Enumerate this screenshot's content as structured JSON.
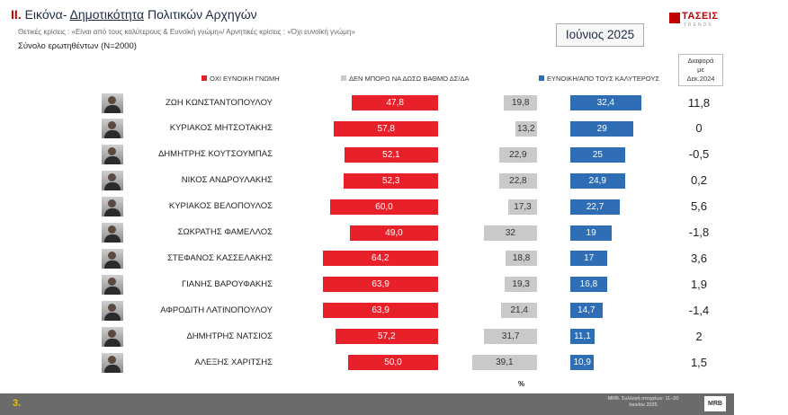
{
  "header": {
    "title_num": "II.",
    "title_pre": "Εικόνα-",
    "title_ul": "Δημοτικότητα",
    "title_post": "Πολιτικών Αρχηγών",
    "subtitle1": "Θετικές κρίσεις : «Είναι από τους καλύτερους & Ευνοϊκή γνώμη»/ Αρνητικές κρίσεις : «Όχι ευνοϊκή γνώμη»",
    "subtitle2": "Σύνολο ερωτηθέντων (Ν=2000)",
    "date": "Ιούνιος 2025",
    "logo_name": "ΤΑΣΕΙΣ",
    "logo_tag": "TRENDS"
  },
  "diff_header": [
    "Διαφορά",
    "με",
    "Δεκ.2024"
  ],
  "legend": {
    "neg": "ΟΧΙ ΕΥΝΟΙΚΗ ΓΝΩΜΗ",
    "neu": "ΔΕΝ ΜΠΟΡΩ ΝΑ ΔΩΣΩ ΒΑΘΜΟ ΔΣ/ΔΑ",
    "pos": "ΕΥΝΟΙΚΗ/ΑΠΟ ΤΟΥΣ ΚΑΛΥΤΕΡΟΥΣ"
  },
  "colors": {
    "neg": "#e8202a",
    "neu": "#c9c9c9",
    "pos": "#2f6eb5"
  },
  "chart_data": {
    "type": "bar",
    "categories": [
      "ΖΩΗ ΚΩΝΣΤΑΝΤΟΠΟΥΛΟΥ",
      "ΚΥΡΙΑΚΟΣ ΜΗΤΣΟΤΑΚΗΣ",
      "ΔΗΜΗΤΡΗΣ ΚΟΥΤΣΟΥΜΠΑΣ",
      "ΝΙΚΟΣ ΑΝΔΡΟΥΛΑΚΗΣ",
      "ΚΥΡΙΑΚΟΣ ΒΕΛΟΠΟΥΛΟΣ",
      "ΣΩΚΡΑΤΗΣ ΦΑΜΕΛΛΟΣ",
      "ΣΤΕΦΑΝΟΣ ΚΑΣΣΕΛΑΚΗΣ",
      "ΓΙΑΝΗΣ ΒΑΡΟΥΦΑΚΗΣ",
      "ΑΦΡΟΔΙΤΗ ΛΑΤΙΝΟΠΟΥΛΟΥ",
      "ΔΗΜΗΤΡΗΣ ΝΑΤΣΙΟΣ",
      "ΑΛΕΞΗΣ ΧΑΡΙΤΣΗΣ"
    ],
    "series": [
      {
        "name": "ΟΧΙ ΕΥΝΟΙΚΗ ΓΝΩΜΗ",
        "key": "neg",
        "values": [
          47.8,
          57.8,
          52.1,
          52.3,
          60.0,
          49.0,
          64.2,
          63.9,
          63.9,
          57.2,
          50.0
        ],
        "labels": [
          "47,8",
          "57,8",
          "52,1",
          "52,3",
          "60,0",
          "49,0",
          "64,2",
          "63,9",
          "63,9",
          "57,2",
          "50,0"
        ]
      },
      {
        "name": "ΔΕΝ ΜΠΟΡΩ ΝΑ ΔΩΣΩ ΒΑΘΜΟ ΔΣ/ΔΑ",
        "key": "neu",
        "values": [
          19.8,
          13.2,
          22.9,
          22.8,
          17.3,
          32,
          18.8,
          19.3,
          21.4,
          31.7,
          39.1
        ],
        "labels": [
          "19,8",
          "13,2",
          "22,9",
          "22,8",
          "17,3",
          "32",
          "18,8",
          "19,3",
          "21,4",
          "31,7",
          "39,1"
        ]
      },
      {
        "name": "ΕΥΝΟΙΚΗ/ΑΠΟ ΤΟΥΣ ΚΑΛΥΤΕΡΟΥΣ",
        "key": "pos",
        "values": [
          32.4,
          29,
          25,
          24.9,
          22.7,
          19,
          17,
          16.8,
          14.7,
          11.1,
          10.9
        ],
        "labels": [
          "32,4",
          "29",
          "25",
          "24,9",
          "22,7",
          "19",
          "17",
          "16,8",
          "14,7",
          "11,1",
          "10,9"
        ]
      }
    ],
    "diff": [
      "11,8",
      "0",
      "-0,5",
      "0,2",
      "5,6",
      "-1,8",
      "3,6",
      "1,9",
      "-1,4",
      "2",
      "1,5"
    ],
    "unit": "%",
    "legend_position": "top",
    "grid": false
  },
  "footer": {
    "page": "3.",
    "note": "MRB. Συλλογή στοιχείων: 11–20 Ιουνίου 2025",
    "logo": "MRB"
  }
}
